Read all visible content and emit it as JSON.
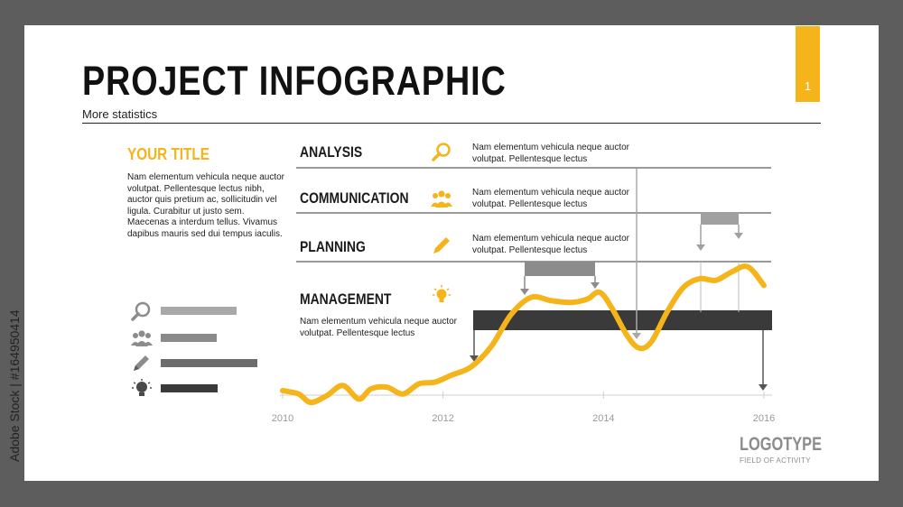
{
  "header": {
    "title": "PROJECT INFOGRAPHIC",
    "subtitle": "More statistics",
    "page_number": "1"
  },
  "sidebar": {
    "title": "YOUR TITLE",
    "body": "Nam elementum vehicula neque auctor volutpat. Pellentesque lectus nibh, auctor quis pretium ac, sollicitudin vel ligula. Curabitur ut justo sem. Maecenas a interdum tellus. Vivamus dapibus mauris sed dui tempus iaculis.",
    "legend": [
      {
        "icon": "magnifier-icon",
        "color": "#a8a8a8",
        "value": 0.62
      },
      {
        "icon": "team-icon",
        "color": "#8a8a8a",
        "value": 0.46
      },
      {
        "icon": "pencil-icon",
        "color": "#6c6c6c",
        "value": 0.79
      },
      {
        "icon": "lightbulb-icon",
        "color": "#3a3a3a",
        "value": 0.47
      }
    ]
  },
  "categories": [
    {
      "label": "ANALYSIS",
      "icon": "magnifier-icon",
      "description": "Nam elementum vehicula neque auctor volutpat. Pellentesque lectus"
    },
    {
      "label": "COMMUNICATION",
      "icon": "team-icon",
      "description": "Nam elementum vehicula neque auctor volutpat. Pellentesque lectus"
    },
    {
      "label": "PLANNING",
      "icon": "pencil-icon",
      "description": "Nam elementum vehicula neque auctor volutpat. Pellentesque lectus"
    },
    {
      "label": "MANAGEMENT",
      "icon": "lightbulb-icon",
      "description": "Nam elementum vehicula neque auctor volutpat. Pellentesque lectus"
    }
  ],
  "chart_data": {
    "type": "line",
    "x_ticks": [
      "2010",
      "2012",
      "2014",
      "2016"
    ],
    "xlim": [
      2010,
      2016
    ],
    "ylim": [
      0,
      100
    ],
    "grid": false,
    "series": [
      {
        "color": "#f4b41a",
        "x": [
          2010.0,
          2010.2,
          2010.35,
          2010.55,
          2010.75,
          2010.95,
          2011.1,
          2011.3,
          2011.5,
          2011.7,
          2011.9,
          2012.1,
          2012.35,
          2012.6,
          2012.85,
          2013.1,
          2013.35,
          2013.6,
          2013.8,
          2013.95,
          2014.1,
          2014.3,
          2014.45,
          2014.6,
          2014.8,
          2015.0,
          2015.2,
          2015.4,
          2015.6,
          2015.8,
          2016.0
        ],
        "y": [
          8,
          6,
          1,
          5,
          11,
          3,
          9,
          10,
          6,
          12,
          13,
          17,
          22,
          34,
          53,
          63,
          61,
          60,
          62,
          66,
          57,
          40,
          33,
          37,
          55,
          69,
          74,
          73,
          78,
          81,
          70
        ]
      }
    ],
    "color_primary": "#f4b41a",
    "color_dark": "#3a3a3a"
  },
  "branding": {
    "logotype": "LOGOTYPE",
    "field": "FIELD OF ACTIVITY"
  },
  "watermark": {
    "text": "Adobe Stock | #164950414"
  }
}
